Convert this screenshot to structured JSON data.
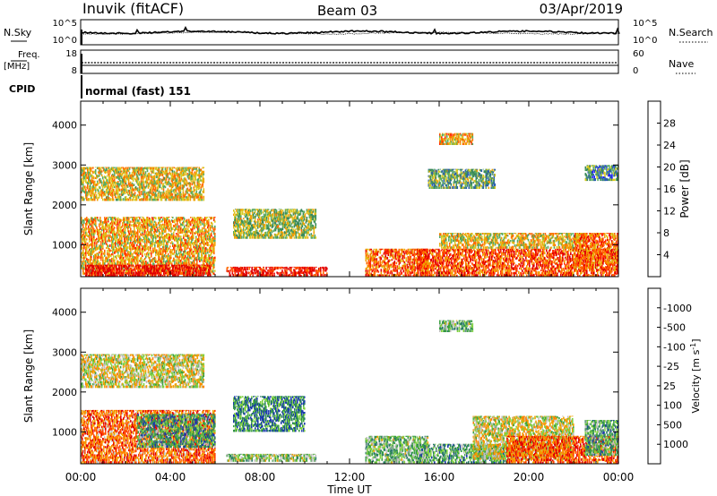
{
  "header": {
    "station": "Inuvik (fitACF)",
    "beam": "Beam 03",
    "date": "03/Apr/2019"
  },
  "colors": {
    "power_scale": [
      "#1a1aff",
      "#2a5fb0",
      "#3a8a5a",
      "#5aaa60",
      "#d8c820",
      "#f0a000",
      "#ff6a00",
      "#ff2a00",
      "#e00000"
    ],
    "velocity_scale": [
      "#e00000",
      "#ff4000",
      "#ff8000",
      "#f0a000",
      "#c0c0c0",
      "#7fd040",
      "#3aa040",
      "#2a7a6a",
      "#1a3aaa"
    ],
    "ground_scatter": "#b4b4b4"
  },
  "top_panel": {
    "left_label": "N.Sky",
    "right_label": "N.Search",
    "left_ticks": [
      "10^5",
      "10^0"
    ],
    "right_ticks": [
      "10^5",
      "10^0"
    ]
  },
  "freq_panel": {
    "left_label_1": "Freq.",
    "left_label_2": "[MHz]",
    "right_label": "Nave",
    "left_ticks": [
      "18",
      "8"
    ],
    "right_ticks": [
      "60",
      "0"
    ],
    "cpid_label": "CPID",
    "cpid_text": "normal (fast) 151"
  },
  "chart_data": [
    {
      "type": "heatmap",
      "name": "power",
      "ylabel": "Slant Range [km]",
      "yticks": [
        "1000",
        "2000",
        "3000",
        "4000"
      ],
      "ylim": [
        200,
        4600
      ],
      "xlim": [
        "00:00",
        "24:00"
      ],
      "colorbar": {
        "label": "Power [dB]",
        "ticks": [
          "4",
          "8",
          "12",
          "16",
          "20",
          "24",
          "28"
        ],
        "range": [
          0,
          32
        ]
      },
      "scatter_regions": [
        {
          "t0": 0.0,
          "t1": 6.0,
          "r0": 250,
          "r1": 1700,
          "level": 0.6
        },
        {
          "t0": 0.2,
          "t1": 5.8,
          "r0": 200,
          "r1": 500,
          "level": 0.95
        },
        {
          "t0": 6.5,
          "t1": 11.0,
          "r0": 200,
          "r1": 450,
          "level": 0.9
        },
        {
          "t0": 6.8,
          "t1": 10.5,
          "r0": 1150,
          "r1": 1900,
          "level": 0.45
        },
        {
          "t0": 0.0,
          "t1": 5.5,
          "r0": 2100,
          "r1": 2950,
          "level": 0.55
        },
        {
          "t0": 12.7,
          "t1": 15.5,
          "r0": 200,
          "r1": 900,
          "level": 0.75
        },
        {
          "t0": 15.0,
          "t1": 24.0,
          "r0": 200,
          "r1": 900,
          "level": 0.8
        },
        {
          "t0": 16.0,
          "t1": 22.5,
          "r0": 900,
          "r1": 1300,
          "level": 0.55
        },
        {
          "t0": 15.5,
          "t1": 18.5,
          "r0": 2400,
          "r1": 2900,
          "level": 0.35
        },
        {
          "t0": 16.0,
          "t1": 17.5,
          "r0": 3500,
          "r1": 3800,
          "level": 0.6
        },
        {
          "t0": 22.0,
          "t1": 24.0,
          "r0": 400,
          "r1": 1300,
          "level": 0.75
        },
        {
          "t0": 22.5,
          "t1": 24.0,
          "r0": 2600,
          "r1": 3000,
          "level": 0.3
        }
      ]
    },
    {
      "type": "heatmap",
      "name": "velocity",
      "ylabel": "Slant Range [km]",
      "yticks": [
        "1000",
        "2000",
        "3000",
        "4000"
      ],
      "ylim": [
        200,
        4600
      ],
      "xlim": [
        "00:00",
        "24:00"
      ],
      "colorbar": {
        "label": "Velocity [m s^-1]",
        "ticks": [
          "1000",
          "500",
          "100",
          "25",
          "-25",
          "-100",
          "-500",
          "-1000"
        ],
        "range": [
          -1200,
          1200
        ]
      },
      "scatter_regions": [
        {
          "t0": 0.0,
          "t1": 6.0,
          "r0": 200,
          "r1": 1550,
          "level": 0.25
        },
        {
          "t0": 2.5,
          "t1": 6.0,
          "r0": 600,
          "r1": 1450,
          "level": 0.75
        },
        {
          "t0": 6.5,
          "t1": 10.5,
          "r0": 250,
          "r1": 450,
          "level": 0.6
        },
        {
          "t0": 6.8,
          "t1": 10.0,
          "r0": 1000,
          "r1": 1900,
          "level": 0.8
        },
        {
          "t0": 0.0,
          "t1": 5.5,
          "r0": 2100,
          "r1": 2950,
          "level": 0.5
        },
        {
          "t0": 12.7,
          "t1": 15.5,
          "r0": 200,
          "r1": 900,
          "level": 0.65
        },
        {
          "t0": 15.0,
          "t1": 19.0,
          "r0": 200,
          "r1": 700,
          "level": 0.7
        },
        {
          "t0": 17.5,
          "t1": 22.0,
          "r0": 300,
          "r1": 1400,
          "level": 0.5
        },
        {
          "t0": 19.0,
          "t1": 24.0,
          "r0": 200,
          "r1": 900,
          "level": 0.2
        },
        {
          "t0": 16.0,
          "t1": 17.5,
          "r0": 3500,
          "r1": 3800,
          "level": 0.65
        },
        {
          "t0": 22.5,
          "t1": 24.0,
          "r0": 400,
          "r1": 1300,
          "level": 0.7
        }
      ]
    }
  ],
  "x_axis": {
    "ticks": [
      "00:00",
      "04:00",
      "08:00",
      "12:00",
      "16:00",
      "20:00",
      "00:00"
    ],
    "label": "Time UT"
  }
}
